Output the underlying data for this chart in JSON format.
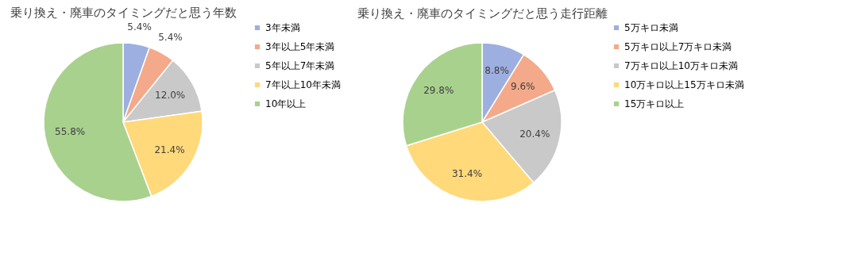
{
  "chart_data": [
    {
      "type": "pie",
      "title": "乗り換え・廃車のタイミングだと思う年数",
      "categories": [
        "3年未満",
        "3年以上5年未満",
        "5年以上7年未満",
        "7年以上10年未満",
        "10年以上"
      ],
      "values": [
        5.4,
        5.4,
        12.0,
        21.4,
        55.8
      ],
      "value_labels": [
        "5.4%",
        "5.4%",
        "12.0%",
        "21.4%",
        "55.8%"
      ],
      "colors": [
        "#9dafe0",
        "#f4a98a",
        "#c9c9c9",
        "#ffd97a",
        "#a9d18e"
      ],
      "legend": "right"
    },
    {
      "type": "pie",
      "title": "乗り換え・廃車のタイミングだと思う走行距離",
      "categories": [
        "5万キロ未満",
        "5万キロ以上7万キロ未満",
        "7万キロ以上10万キロ未満",
        "10万キロ以上15万キロ未満",
        "15万キロ以上"
      ],
      "values": [
        8.8,
        9.6,
        20.4,
        31.4,
        29.8
      ],
      "value_labels": [
        "8.8%",
        "9.6%",
        "20.4%",
        "31.4%",
        "29.8%"
      ],
      "colors": [
        "#9dafe0",
        "#f4a98a",
        "#c9c9c9",
        "#ffd97a",
        "#a9d18e"
      ],
      "legend": "right"
    }
  ]
}
